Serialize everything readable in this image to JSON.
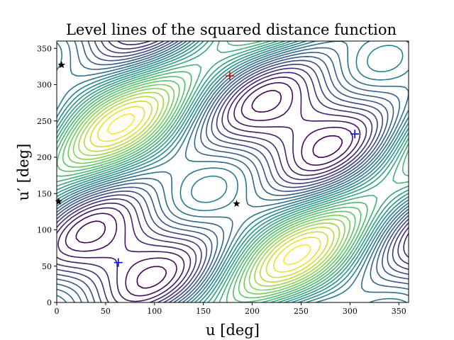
{
  "chart_data": {
    "type": "contour",
    "title": "Level lines of the squared distance function",
    "xlabel": "u [deg]",
    "ylabel": "u′ [deg]",
    "xlim": [
      0,
      360
    ],
    "ylim": [
      0,
      360
    ],
    "xticks": [
      0,
      50,
      100,
      150,
      200,
      250,
      300,
      350
    ],
    "yticks": [
      0,
      50,
      100,
      150,
      200,
      250,
      300,
      350
    ],
    "colormap": "viridis",
    "grid": false,
    "minima": [
      {
        "u": 63,
        "up": 55,
        "color": "#0000ff"
      },
      {
        "u": 305,
        "up": 232,
        "color": "#0000ff"
      }
    ],
    "maxima": [
      {
        "u": 177,
        "up": 312,
        "color": "#ff0000"
      }
    ],
    "saddles": [
      {
        "u": 5,
        "up": 327,
        "color": "#000000"
      },
      {
        "u": 2,
        "up": 139,
        "color": "#000000"
      },
      {
        "u": 184,
        "up": 136,
        "color": "#000000"
      }
    ]
  }
}
